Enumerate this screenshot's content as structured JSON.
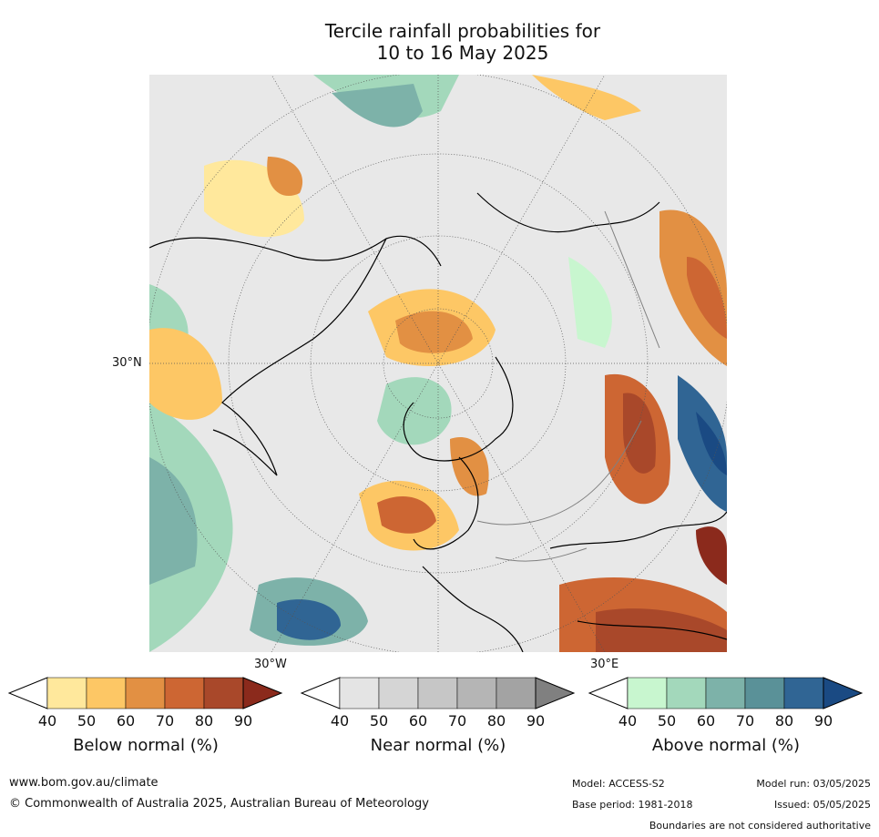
{
  "title_line1": "Tercile rainfall probabilities for",
  "title_line2": "10 to 16 May 2025",
  "map": {
    "projection": "north-polar-stereographic",
    "lat_labels": [
      "30°N"
    ],
    "lon_labels": [
      "30°W",
      "30°E"
    ],
    "colors": {
      "below": [
        "#ffe89c",
        "#fdc765",
        "#e29043",
        "#cd6633",
        "#a9482a",
        "#8b2a1c"
      ],
      "near": [
        "#e4e4e4",
        "#d5d5d5",
        "#c6c6c6",
        "#b5b5b5",
        "#a3a3a3",
        "#808080"
      ],
      "above": [
        "#c8f6cf",
        "#a3d8bb",
        "#7db2a9",
        "#5a9198",
        "#306594",
        "#1a4a83"
      ],
      "coastline": "#000000",
      "borders": "#808080"
    }
  },
  "colorbars": [
    {
      "label": "Below normal (%)",
      "ticks": [
        "40",
        "50",
        "60",
        "70",
        "80",
        "90"
      ]
    },
    {
      "label": "Near normal (%)",
      "ticks": [
        "40",
        "50",
        "60",
        "70",
        "80",
        "90"
      ]
    },
    {
      "label": "Above normal (%)",
      "ticks": [
        "40",
        "50",
        "60",
        "70",
        "80",
        "90"
      ]
    }
  ],
  "footer": {
    "url": "www.bom.gov.au/climate",
    "copyright": "© Commonwealth of Australia 2025, Australian Bureau of Meteorology",
    "model": "Model: ACCESS-S2",
    "base_period": "Base period: 1981-2018",
    "model_run": "Model run: 03/05/2025",
    "issued": "Issued: 05/05/2025",
    "disclaimer": "Boundaries are not considered authoritative"
  }
}
